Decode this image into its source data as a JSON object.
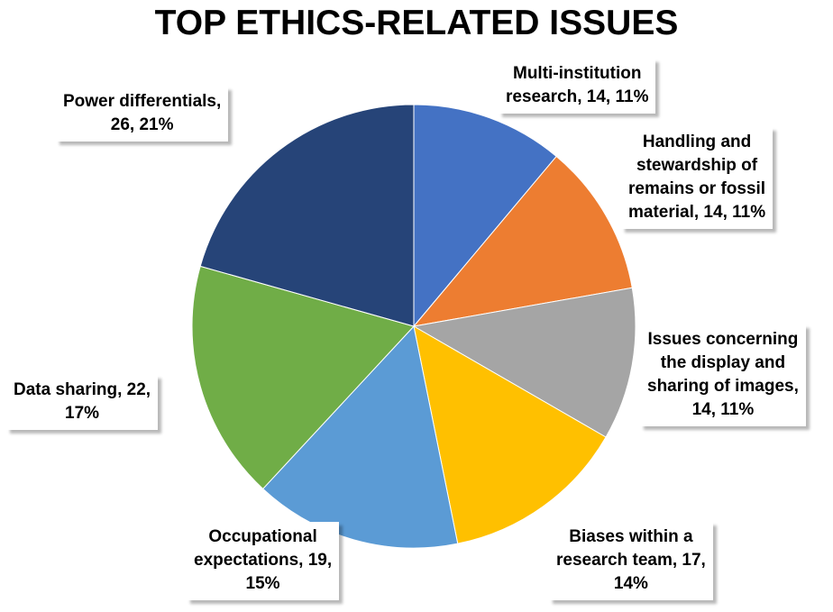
{
  "chart_data": {
    "type": "pie",
    "title": "TOP ETHICS-RELATED ISSUES",
    "slices": [
      {
        "name": "Multi-institution research",
        "value": 14,
        "percent": "11%",
        "color": "#4472C4",
        "label_lines": [
          "Multi-institution",
          "research, 14, 11%"
        ]
      },
      {
        "name": "Handling and stewardship of remains or fossil material",
        "value": 14,
        "percent": "11%",
        "color": "#ED7D31",
        "label_lines": [
          "Handling and",
          "stewardship of",
          "remains or fossil",
          "material, 14, 11%"
        ]
      },
      {
        "name": "Issues concerning the display and sharing of images",
        "value": 14,
        "percent": "11%",
        "color": "#A5A5A5",
        "label_lines": [
          "Issues concerning",
          "the display and",
          "sharing of images,",
          "14, 11%"
        ]
      },
      {
        "name": "Biases within a research team",
        "value": 17,
        "percent": "14%",
        "color": "#FFC000",
        "label_lines": [
          "Biases within a",
          "research team, 17,",
          "14%"
        ]
      },
      {
        "name": "Occupational expectations",
        "value": 19,
        "percent": "15%",
        "color": "#5B9BD5",
        "label_lines": [
          "Occupational",
          "expectations, 19,",
          "15%"
        ]
      },
      {
        "name": "Data sharing",
        "value": 22,
        "percent": "17%",
        "color": "#70AD47",
        "label_lines": [
          "Data sharing, 22,",
          "17%"
        ]
      },
      {
        "name": "Power differentials",
        "value": 26,
        "percent": "21%",
        "color": "#264478",
        "label_lines": [
          "Power differentials,",
          "26, 21%"
        ]
      }
    ],
    "legend": "none",
    "start_angle": "12 o'clock",
    "direction": "clockwise"
  }
}
